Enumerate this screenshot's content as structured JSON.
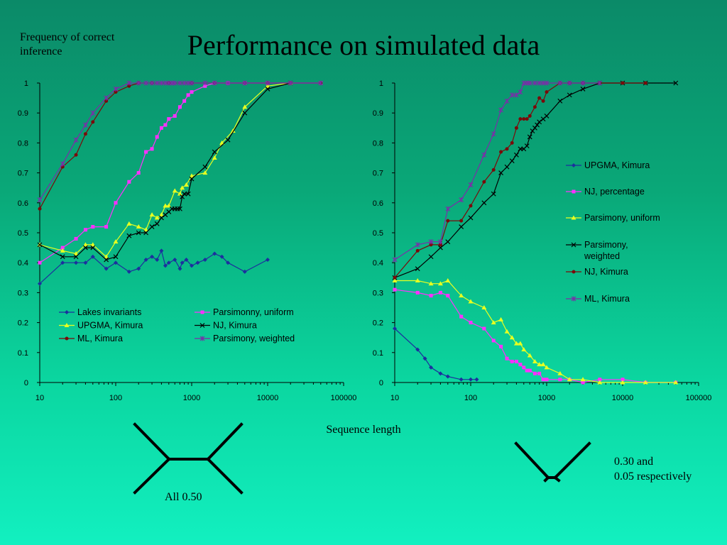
{
  "slide": {
    "title": "Performance on simulated data",
    "y_note": "Frequency of correct inference",
    "x_note": "Sequence length",
    "tree_captions": [
      "All 0.50",
      "0.30 and\n0.05 respectively"
    ]
  },
  "chart_data": [
    {
      "type": "line",
      "x_scale": "log",
      "xlim": [
        10,
        100000
      ],
      "ylim": [
        0,
        1
      ],
      "xticks": [
        10,
        100,
        1000,
        10000,
        100000
      ],
      "xtick_labels": [
        "10",
        "100",
        "1000",
        "10000",
        "100000"
      ],
      "yticks": [
        0,
        0.1,
        0.2,
        0.3,
        0.4,
        0.5,
        0.6,
        0.7,
        0.8,
        0.9,
        1
      ],
      "ytick_labels": [
        "0",
        "0.1",
        "0.2",
        "0.3",
        "0.4",
        "0.5",
        "0.6",
        "0.7",
        "0.8",
        "0.9",
        "1"
      ],
      "legend_placement": "bottom",
      "series": [
        {
          "name": "Lakes invariants",
          "color": "#1c2f9e",
          "marker": "diamond",
          "x": [
            10,
            20,
            30,
            40,
            50,
            75,
            100,
            150,
            200,
            250,
            300,
            350,
            400,
            450,
            500,
            600,
            700,
            750,
            850,
            1000,
            1200,
            1500,
            2000,
            2500,
            3000,
            5000,
            10000
          ],
          "y": [
            0.33,
            0.4,
            0.4,
            0.4,
            0.42,
            0.38,
            0.4,
            0.37,
            0.38,
            0.41,
            0.42,
            0.41,
            0.44,
            0.39,
            0.4,
            0.41,
            0.38,
            0.4,
            0.41,
            0.39,
            0.4,
            0.41,
            0.43,
            0.42,
            0.4,
            0.37,
            0.41
          ]
        },
        {
          "name": "Parsimonny, uniform",
          "color": "#ff30ff",
          "marker": "square",
          "x": [
            10,
            20,
            30,
            40,
            50,
            75,
            100,
            150,
            200,
            250,
            300,
            350,
            400,
            450,
            500,
            600,
            700,
            800,
            900,
            1000,
            1500,
            2000,
            3000,
            5000,
            10000,
            20000,
            50000
          ],
          "y": [
            0.4,
            0.45,
            0.48,
            0.51,
            0.52,
            0.52,
            0.6,
            0.67,
            0.7,
            0.77,
            0.78,
            0.82,
            0.85,
            0.86,
            0.88,
            0.89,
            0.92,
            0.94,
            0.96,
            0.97,
            0.99,
            1.0,
            1.0,
            1.0,
            1.0,
            1.0,
            1.0
          ]
        },
        {
          "name": "UPGMA, Kimura",
          "color": "#e8ff20",
          "marker": "triangle",
          "x": [
            10,
            20,
            30,
            40,
            50,
            75,
            100,
            150,
            200,
            250,
            300,
            350,
            400,
            450,
            500,
            600,
            700,
            750,
            850,
            1000,
            1500,
            2000,
            2500,
            3500,
            5000,
            10000,
            20000
          ],
          "y": [
            0.46,
            0.44,
            0.43,
            0.46,
            0.46,
            0.42,
            0.47,
            0.53,
            0.52,
            0.51,
            0.56,
            0.55,
            0.56,
            0.59,
            0.59,
            0.64,
            0.63,
            0.65,
            0.66,
            0.69,
            0.7,
            0.75,
            0.8,
            0.84,
            0.92,
            0.99,
            1.0
          ]
        },
        {
          "name": "NJ, Kimura",
          "color": "#000000",
          "marker": "x",
          "x": [
            10,
            20,
            30,
            40,
            50,
            75,
            100,
            150,
            200,
            250,
            300,
            350,
            400,
            450,
            500,
            550,
            600,
            650,
            700,
            750,
            800,
            900,
            1000,
            1500,
            2000,
            3000,
            5000,
            10000,
            20000
          ],
          "y": [
            0.46,
            0.42,
            0.42,
            0.45,
            0.45,
            0.41,
            0.42,
            0.49,
            0.5,
            0.5,
            0.52,
            0.53,
            0.55,
            0.56,
            0.57,
            0.58,
            0.58,
            0.58,
            0.58,
            0.62,
            0.63,
            0.63,
            0.68,
            0.72,
            0.77,
            0.81,
            0.9,
            0.98,
            1.0
          ]
        },
        {
          "name": "ML, Kimura",
          "color": "#7a0a0a",
          "marker": "circle",
          "x": [
            10,
            20,
            30,
            40,
            50,
            75,
            100,
            150,
            200,
            300,
            500,
            1000,
            2000,
            5000,
            10000,
            20000,
            50000
          ],
          "y": [
            0.58,
            0.72,
            0.76,
            0.83,
            0.87,
            0.94,
            0.97,
            0.99,
            1.0,
            1.0,
            1.0,
            1.0,
            1.0,
            1.0,
            1.0,
            1.0,
            1.0
          ]
        },
        {
          "name": "Parsimony, weighted",
          "color": "#7a2ea8",
          "marker": "star",
          "x": [
            10,
            20,
            30,
            40,
            50,
            75,
            100,
            150,
            200,
            250,
            300,
            350,
            400,
            450,
            500,
            550,
            600,
            700,
            800,
            900,
            1000,
            1500,
            2000,
            3000,
            5000,
            10000,
            20000,
            50000
          ],
          "y": [
            0.61,
            0.73,
            0.81,
            0.86,
            0.9,
            0.95,
            0.98,
            1.0,
            1.0,
            1.0,
            1.0,
            1.0,
            1.0,
            1.0,
            1.0,
            1.0,
            1.0,
            1.0,
            1.0,
            1.0,
            1.0,
            1.0,
            1.0,
            1.0,
            1.0,
            1.0,
            1.0,
            1.0
          ]
        }
      ]
    },
    {
      "type": "line",
      "x_scale": "log",
      "xlim": [
        10,
        100000
      ],
      "ylim": [
        0,
        1
      ],
      "xticks": [
        10,
        100,
        1000,
        10000,
        100000
      ],
      "xtick_labels": [
        "10",
        "100",
        "1000",
        "10000",
        "100000"
      ],
      "yticks": [
        0,
        0.1,
        0.2,
        0.3,
        0.4,
        0.5,
        0.6,
        0.7,
        0.8,
        0.9,
        1
      ],
      "ytick_labels": [
        "0",
        "0.1",
        "0.2",
        "0.3",
        "0.4",
        "0.5",
        "0.6",
        "0.7",
        "0.8",
        "0.9",
        "1"
      ],
      "legend_placement": "right",
      "series": [
        {
          "name": "UPGMA, Kimura",
          "color": "#1c2f9e",
          "marker": "diamond",
          "x": [
            10,
            20,
            25,
            30,
            40,
            50,
            75,
            100,
            120
          ],
          "y": [
            0.18,
            0.11,
            0.08,
            0.05,
            0.03,
            0.02,
            0.01,
            0.01,
            0.01
          ]
        },
        {
          "name": "NJ, percentage",
          "color": "#ff30ff",
          "marker": "square",
          "x": [
            10,
            20,
            30,
            40,
            50,
            75,
            100,
            150,
            200,
            250,
            300,
            350,
            400,
            450,
            500,
            550,
            600,
            700,
            800,
            900,
            1000,
            1500,
            2000,
            3000,
            5000,
            10000,
            20000,
            50000
          ],
          "y": [
            0.31,
            0.3,
            0.29,
            0.3,
            0.29,
            0.22,
            0.2,
            0.18,
            0.14,
            0.12,
            0.08,
            0.07,
            0.07,
            0.06,
            0.05,
            0.04,
            0.04,
            0.03,
            0.03,
            0.01,
            0.01,
            0.01,
            0.01,
            0.0,
            0.01,
            0.01,
            0.0,
            0.0
          ]
        },
        {
          "name": "Parsimony, uniform",
          "color": "#e8ff20",
          "marker": "triangle",
          "x": [
            10,
            20,
            30,
            40,
            50,
            75,
            100,
            150,
            200,
            250,
            300,
            350,
            400,
            450,
            500,
            600,
            700,
            800,
            900,
            1000,
            1500,
            2000,
            3000,
            5000,
            10000,
            20000,
            50000
          ],
          "y": [
            0.34,
            0.34,
            0.33,
            0.33,
            0.34,
            0.29,
            0.27,
            0.25,
            0.2,
            0.21,
            0.17,
            0.15,
            0.13,
            0.13,
            0.11,
            0.09,
            0.07,
            0.06,
            0.06,
            0.05,
            0.03,
            0.01,
            0.01,
            0.0,
            0.0,
            0.0,
            0.0
          ]
        },
        {
          "name": "Parsimony, weighted",
          "color": "#000000",
          "marker": "x",
          "x": [
            10,
            20,
            30,
            40,
            50,
            75,
            100,
            150,
            200,
            250,
            300,
            350,
            400,
            450,
            500,
            550,
            600,
            650,
            700,
            750,
            800,
            900,
            1000,
            1500,
            2000,
            3000,
            5000,
            10000,
            20000,
            50000
          ],
          "y": [
            0.35,
            0.38,
            0.42,
            0.45,
            0.47,
            0.52,
            0.55,
            0.6,
            0.63,
            0.7,
            0.72,
            0.74,
            0.76,
            0.78,
            0.78,
            0.79,
            0.82,
            0.84,
            0.85,
            0.86,
            0.87,
            0.88,
            0.89,
            0.94,
            0.96,
            0.98,
            1.0,
            1.0,
            1.0,
            1.0
          ]
        },
        {
          "name": "NJ, Kimura",
          "color": "#7a0a0a",
          "marker": "circle",
          "x": [
            10,
            20,
            30,
            40,
            50,
            75,
            100,
            150,
            200,
            250,
            300,
            350,
            400,
            450,
            500,
            550,
            600,
            700,
            800,
            900,
            1000,
            1500,
            2000,
            3000,
            5000,
            10000,
            20000
          ],
          "y": [
            0.35,
            0.44,
            0.46,
            0.46,
            0.54,
            0.54,
            0.59,
            0.67,
            0.71,
            0.77,
            0.78,
            0.8,
            0.85,
            0.88,
            0.88,
            0.88,
            0.89,
            0.92,
            0.95,
            0.94,
            0.97,
            1.0,
            1.0,
            1.0,
            1.0,
            1.0,
            1.0
          ]
        },
        {
          "name": "ML, Kimura",
          "color": "#7a2ea8",
          "marker": "star",
          "x": [
            10,
            20,
            30,
            40,
            50,
            75,
            100,
            150,
            200,
            250,
            300,
            350,
            400,
            450,
            500,
            550,
            600,
            700,
            800,
            900,
            1000,
            1500,
            2000,
            3000,
            5000
          ],
          "y": [
            0.41,
            0.46,
            0.47,
            0.47,
            0.58,
            0.61,
            0.66,
            0.76,
            0.83,
            0.91,
            0.94,
            0.96,
            0.96,
            0.97,
            1.0,
            1.0,
            1.0,
            1.0,
            1.0,
            1.0,
            1.0,
            1.0,
            1.0,
            1.0,
            1.0
          ]
        }
      ]
    }
  ]
}
